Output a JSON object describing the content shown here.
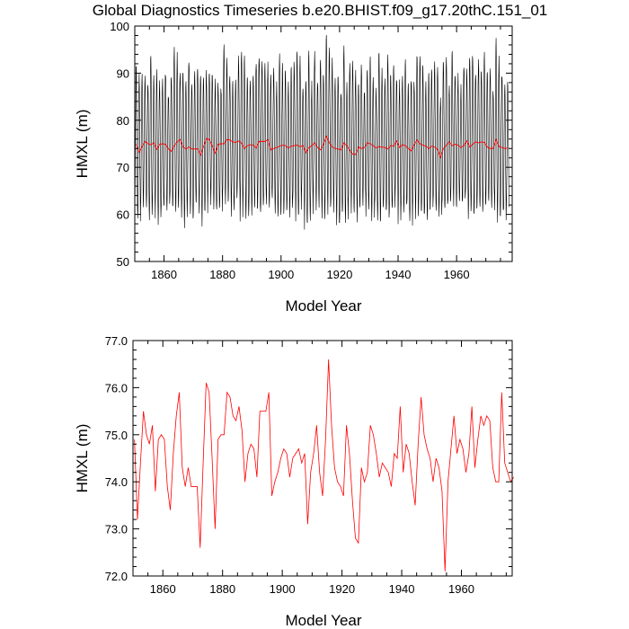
{
  "title": "Global Diagnostics Timeseries b.e20.BHIST.f09_g17.20thC.151_01",
  "chart_data": [
    {
      "type": "line",
      "panel": "top",
      "xlabel": "Model Year",
      "ylabel": "HMXL (m)",
      "xlim": [
        1850,
        1979
      ],
      "ylim": [
        50,
        100
      ],
      "x_ticks": [
        1860,
        1880,
        1900,
        1920,
        1940,
        1960
      ],
      "x_tick_labels": [
        "1860",
        "1880",
        "1900",
        "1920",
        "1940",
        "1960"
      ],
      "y_ticks": [
        50,
        60,
        70,
        80,
        90,
        100
      ],
      "y_tick_labels": [
        "50",
        "60",
        "70",
        "80",
        "90",
        "100"
      ],
      "series": [
        {
          "description": "monthly mean, seasonal cycle",
          "color": "#000000",
          "cycle_min_approx": 61,
          "cycle_max_approx": 91,
          "frequency": "12 samples per model year"
        },
        {
          "description": "annual mean (same values as bottom panel)",
          "color": "#ff0000",
          "values_ref": "bottom"
        }
      ]
    },
    {
      "type": "line",
      "panel": "bottom",
      "xlabel": "Model Year",
      "ylabel": "HMXL (m)",
      "xlim": [
        1850,
        1977
      ],
      "ylim": [
        72.0,
        77.0
      ],
      "x_ticks": [
        1860,
        1880,
        1900,
        1920,
        1940,
        1960
      ],
      "x_tick_labels": [
        "1860",
        "1880",
        "1900",
        "1920",
        "1940",
        "1960"
      ],
      "y_ticks": [
        72.0,
        73.0,
        74.0,
        75.0,
        76.0,
        77.0
      ],
      "y_tick_labels": [
        "72.0",
        "73.0",
        "74.0",
        "75.0",
        "76.0",
        "77.0"
      ],
      "series": [
        {
          "color": "#ff0000",
          "x_start": 1850,
          "x_step": 1,
          "values": [
            74.9,
            73.2,
            74.4,
            75.5,
            75.0,
            74.8,
            75.2,
            73.8,
            74.9,
            75.0,
            74.9,
            73.9,
            73.4,
            74.6,
            75.4,
            75.9,
            74.3,
            73.9,
            74.3,
            73.9,
            73.9,
            73.9,
            72.6,
            74.4,
            76.1,
            75.9,
            74.5,
            73.0,
            74.9,
            75.0,
            75.0,
            75.9,
            75.8,
            75.4,
            75.3,
            75.6,
            75.1,
            74.0,
            74.6,
            74.8,
            74.7,
            74.1,
            75.5,
            75.5,
            75.5,
            75.9,
            73.7,
            74.0,
            74.2,
            74.5,
            74.7,
            74.6,
            74.1,
            74.5,
            74.6,
            74.7,
            74.4,
            74.6,
            73.1,
            74.2,
            74.6,
            75.2,
            74.2,
            73.7,
            74.9,
            76.6,
            75.2,
            74.3,
            74.0,
            73.9,
            73.7,
            75.2,
            74.6,
            73.6,
            72.8,
            72.7,
            74.3,
            74.0,
            74.2,
            75.2,
            75.0,
            74.6,
            74.1,
            74.4,
            74.3,
            74.2,
            73.9,
            74.6,
            74.5,
            75.6,
            74.2,
            74.8,
            74.6,
            74.0,
            73.5,
            74.8,
            75.8,
            75.0,
            74.7,
            74.5,
            74.0,
            74.5,
            74.3,
            73.8,
            72.1,
            74.0,
            74.7,
            75.4,
            74.6,
            74.9,
            74.7,
            74.2,
            74.6,
            75.6,
            74.3,
            74.9,
            75.4,
            75.2,
            75.4,
            75.3,
            74.3,
            74.0,
            74.0,
            75.9,
            74.4,
            74.2,
            74.0,
            74.1
          ]
        }
      ]
    }
  ]
}
